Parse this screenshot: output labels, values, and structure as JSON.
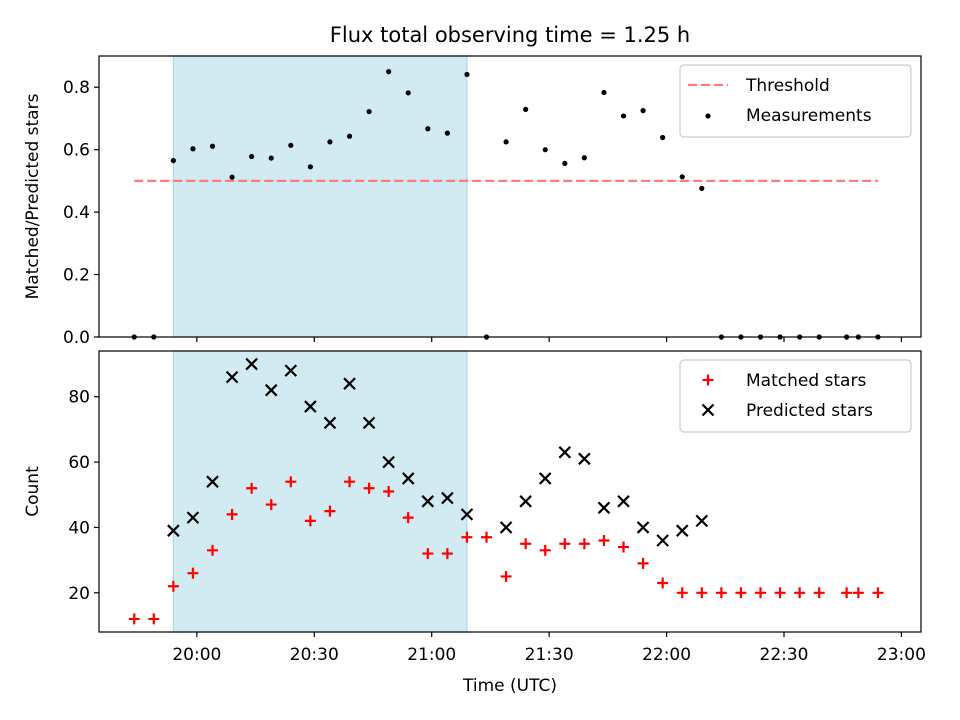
{
  "title": "Flux total observing time = 1.25 h",
  "colors": {
    "threshold": "#ff7b7b",
    "measurement": "#000000",
    "matched": "#ff0000",
    "predicted": "#000000",
    "shade": "#add8e6"
  },
  "chart_data": [
    {
      "type": "scatter",
      "ylabel": "Matched/Predicted stars",
      "ylim": [
        0,
        0.9
      ],
      "yticks": [
        0.0,
        0.2,
        0.4,
        0.6,
        0.8
      ],
      "ytick_labels": [
        "0.0",
        "0.2",
        "0.4",
        "0.6",
        "0.8"
      ],
      "xlim": [
        "19:35",
        "23:05"
      ],
      "shaded_interval": [
        "19:54",
        "21:09"
      ],
      "legend": "top-right",
      "series": [
        {
          "name": "Threshold",
          "kind": "dashed-line",
          "x": [
            "19:44",
            "22:54"
          ],
          "y": [
            0.5,
            0.5
          ]
        },
        {
          "name": "Measurements",
          "kind": "dot",
          "x": [
            "19:44",
            "19:49",
            "19:54",
            "19:59",
            "20:04",
            "20:09",
            "20:14",
            "20:19",
            "20:24",
            "20:29",
            "20:34",
            "20:39",
            "20:44",
            "20:49",
            "20:54",
            "20:59",
            "21:04",
            "21:09",
            "21:14",
            "21:19",
            "21:24",
            "21:29",
            "21:34",
            "21:39",
            "21:44",
            "21:49",
            "21:54",
            "21:59",
            "22:04",
            "22:09",
            "22:14",
            "22:19",
            "22:24",
            "22:29",
            "22:34",
            "22:39",
            "22:46",
            "22:49",
            "22:54"
          ],
          "y": [
            0,
            0,
            0.565,
            0.603,
            0.611,
            0.512,
            0.578,
            0.573,
            0.614,
            0.545,
            0.625,
            0.643,
            0.722,
            0.85,
            0.782,
            0.667,
            0.653,
            0.841,
            0,
            0.625,
            0.729,
            0.6,
            0.556,
            0.574,
            0.783,
            0.708,
            0.725,
            0.639,
            0.513,
            0.476,
            0,
            0,
            0,
            0,
            0,
            0,
            0,
            0,
            0
          ]
        }
      ]
    },
    {
      "type": "scatter",
      "xlabel": "Time (UTC)",
      "ylabel": "Count",
      "ylim": [
        8,
        94
      ],
      "yticks": [
        20,
        40,
        60,
        80
      ],
      "ytick_labels": [
        "20",
        "40",
        "60",
        "80"
      ],
      "xlim": [
        "19:35",
        "23:05"
      ],
      "xticks": [
        "20:00",
        "20:30",
        "21:00",
        "21:30",
        "22:00",
        "22:30",
        "23:00"
      ],
      "xtick_labels": [
        "20:00",
        "20:30",
        "21:00",
        "21:30",
        "22:00",
        "22:30",
        "23:00"
      ],
      "shaded_interval": [
        "19:54",
        "21:09"
      ],
      "legend": "top-right",
      "series": [
        {
          "name": "Matched stars",
          "kind": "plus",
          "x": [
            "19:44",
            "19:49",
            "19:54",
            "19:59",
            "20:04",
            "20:09",
            "20:14",
            "20:19",
            "20:24",
            "20:29",
            "20:34",
            "20:39",
            "20:44",
            "20:49",
            "20:54",
            "20:59",
            "21:04",
            "21:09",
            "21:14",
            "21:19",
            "21:24",
            "21:29",
            "21:34",
            "21:39",
            "21:44",
            "21:49",
            "21:54",
            "21:59",
            "22:04",
            "22:09",
            "22:14",
            "22:19",
            "22:24",
            "22:29",
            "22:34",
            "22:39",
            "22:46",
            "22:49",
            "22:54"
          ],
          "y": [
            12,
            12,
            22,
            26,
            33,
            44,
            52,
            47,
            54,
            42,
            45,
            54,
            52,
            51,
            43,
            32,
            32,
            37,
            37,
            25,
            35,
            33,
            35,
            35,
            36,
            34,
            29,
            23,
            20,
            20,
            20,
            20,
            20,
            20,
            20,
            20,
            20,
            20,
            20
          ]
        },
        {
          "name": "Predicted stars",
          "kind": "x",
          "x": [
            "19:54",
            "19:59",
            "20:04",
            "20:09",
            "20:14",
            "20:19",
            "20:24",
            "20:29",
            "20:34",
            "20:39",
            "20:44",
            "20:49",
            "20:54",
            "20:59",
            "21:04",
            "21:09",
            "21:19",
            "21:24",
            "21:29",
            "21:34",
            "21:39",
            "21:44",
            "21:49",
            "21:54",
            "21:59",
            "22:04",
            "22:09"
          ],
          "y": [
            39,
            43,
            54,
            86,
            90,
            82,
            88,
            77,
            72,
            84,
            72,
            60,
            55,
            48,
            49,
            44,
            40,
            48,
            55,
            63,
            61,
            46,
            48,
            40,
            36,
            39,
            42
          ]
        }
      ]
    }
  ]
}
